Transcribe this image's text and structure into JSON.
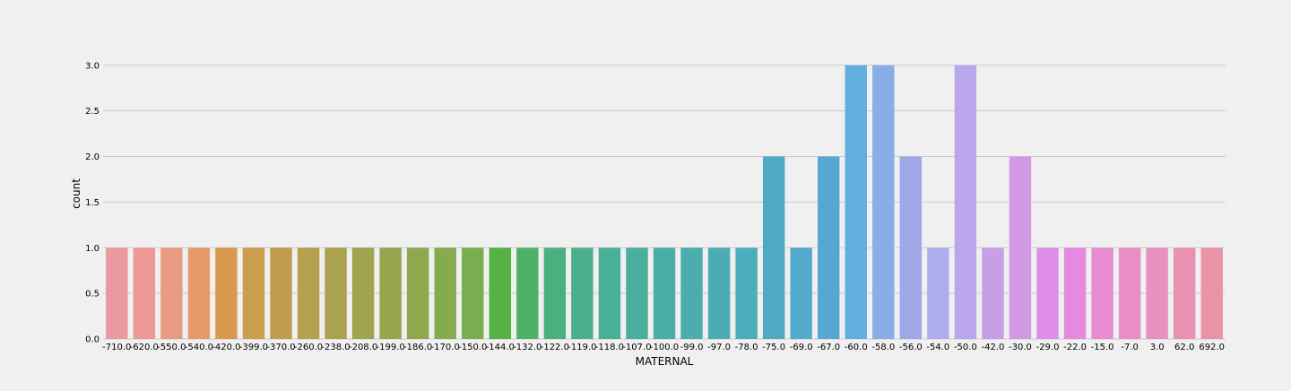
{
  "chart_data": {
    "type": "bar",
    "title": "",
    "xlabel": "MATERNAL",
    "ylabel": "count",
    "ylim": [
      0,
      3.15
    ],
    "yticks": [
      "0.0",
      "0.5",
      "1.0",
      "1.5",
      "2.0",
      "2.5",
      "3.0"
    ],
    "grid": true,
    "categories": [
      "-710.0",
      "-620.0",
      "-550.0",
      "-540.0",
      "-420.0",
      "-399.0",
      "-370.0",
      "-260.0",
      "-238.0",
      "-208.0",
      "-199.0",
      "-186.0",
      "-170.0",
      "-150.0",
      "-144.0",
      "-132.0",
      "-122.0",
      "-119.0",
      "-118.0",
      "-107.0",
      "-100.0",
      "-99.0",
      "-97.0",
      "-78.0",
      "-75.0",
      "-69.0",
      "-67.0",
      "-60.0",
      "-58.0",
      "-56.0",
      "-54.0",
      "-50.0",
      "-42.0",
      "-30.0",
      "-29.0",
      "-22.0",
      "-15.0",
      "-7.0",
      "3.0",
      "62.0",
      "692.0"
    ],
    "values": [
      1,
      1,
      1,
      1,
      1,
      1,
      1,
      1,
      1,
      1,
      1,
      1,
      1,
      1,
      1,
      1,
      1,
      1,
      1,
      1,
      1,
      1,
      1,
      1,
      2,
      1,
      2,
      3,
      3,
      2,
      1,
      3,
      1,
      2,
      1,
      1,
      1,
      1,
      1,
      1,
      1
    ],
    "colors": [
      "#ec98a1",
      "#ec9993",
      "#e99a83",
      "#e6996a",
      "#d8994f",
      "#cb9d4e",
      "#c09d4e",
      "#b4a04e",
      "#aaa24f",
      "#a0a44f",
      "#97a54e",
      "#8fa84e",
      "#86aa4f",
      "#7aad4f",
      "#56b246",
      "#4fb167",
      "#4bb07f",
      "#4ab08c",
      "#4aaf97",
      "#4aae9f",
      "#4aaea6",
      "#4badae",
      "#4cacb5",
      "#4eadbb",
      "#50a9c3",
      "#53aacc",
      "#56a8d4",
      "#63aee1",
      "#89aee5",
      "#9fa8e6",
      "#aeaeec",
      "#baa6ed",
      "#c79fe9",
      "#d29ae6",
      "#de8ee8",
      "#e689e1",
      "#e88bd0",
      "#e88ec5",
      "#e891c1",
      "#e991b3",
      "#e893a6"
    ]
  }
}
